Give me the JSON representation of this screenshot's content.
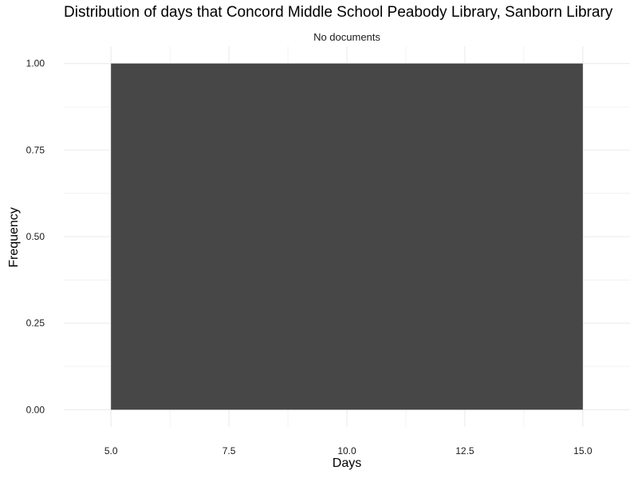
{
  "chart_data": {
    "type": "bar",
    "title": "Distribution of days that Concord Middle School Peabody Library, Sanborn Library",
    "subtitle": "No documents",
    "xlabel": "Days",
    "ylabel": "Frequency",
    "bins": [
      {
        "x_start": 5.0,
        "x_end": 15.0,
        "frequency": 1.0
      }
    ],
    "xlim": [
      4.0,
      16.0
    ],
    "ylim": [
      -0.05,
      1.05
    ],
    "x_ticks": [
      "5.0",
      "7.5",
      "10.0",
      "12.5",
      "15.0"
    ],
    "x_tick_values": [
      5.0,
      7.5,
      10.0,
      12.5,
      15.0
    ],
    "y_ticks": [
      "0.00",
      "0.25",
      "0.50",
      "0.75",
      "1.00"
    ],
    "y_tick_values": [
      0.0,
      0.25,
      0.5,
      0.75,
      1.0
    ],
    "grid": true,
    "bar_color": "#474747",
    "grid_color": "#ebebeb"
  }
}
